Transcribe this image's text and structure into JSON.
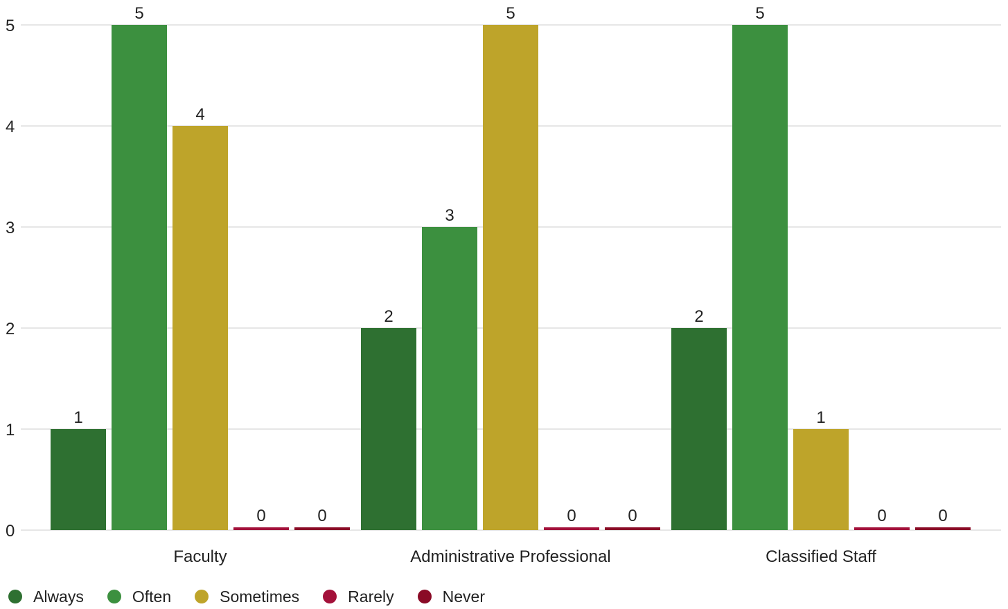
{
  "chart_data": {
    "type": "bar",
    "categories": [
      "Faculty",
      "Administrative Professional",
      "Classified Staff"
    ],
    "series": [
      {
        "name": "Always",
        "color": "#2e7031",
        "values": [
          1,
          2,
          2
        ]
      },
      {
        "name": "Often",
        "color": "#3c903f",
        "values": [
          5,
          3,
          5
        ]
      },
      {
        "name": "Sometimes",
        "color": "#bea42a",
        "values": [
          4,
          5,
          1
        ]
      },
      {
        "name": "Rarely",
        "color": "#a3113a",
        "values": [
          0,
          0,
          0
        ]
      },
      {
        "name": "Never",
        "color": "#8a0a26",
        "values": [
          0,
          0,
          0
        ]
      }
    ],
    "ylim": [
      0,
      5
    ],
    "yticks": [
      0,
      1,
      2,
      3,
      4,
      5
    ],
    "grid": true,
    "gridColor": "#dddddd",
    "data_labels": true,
    "legend_position": "bottom-left"
  }
}
